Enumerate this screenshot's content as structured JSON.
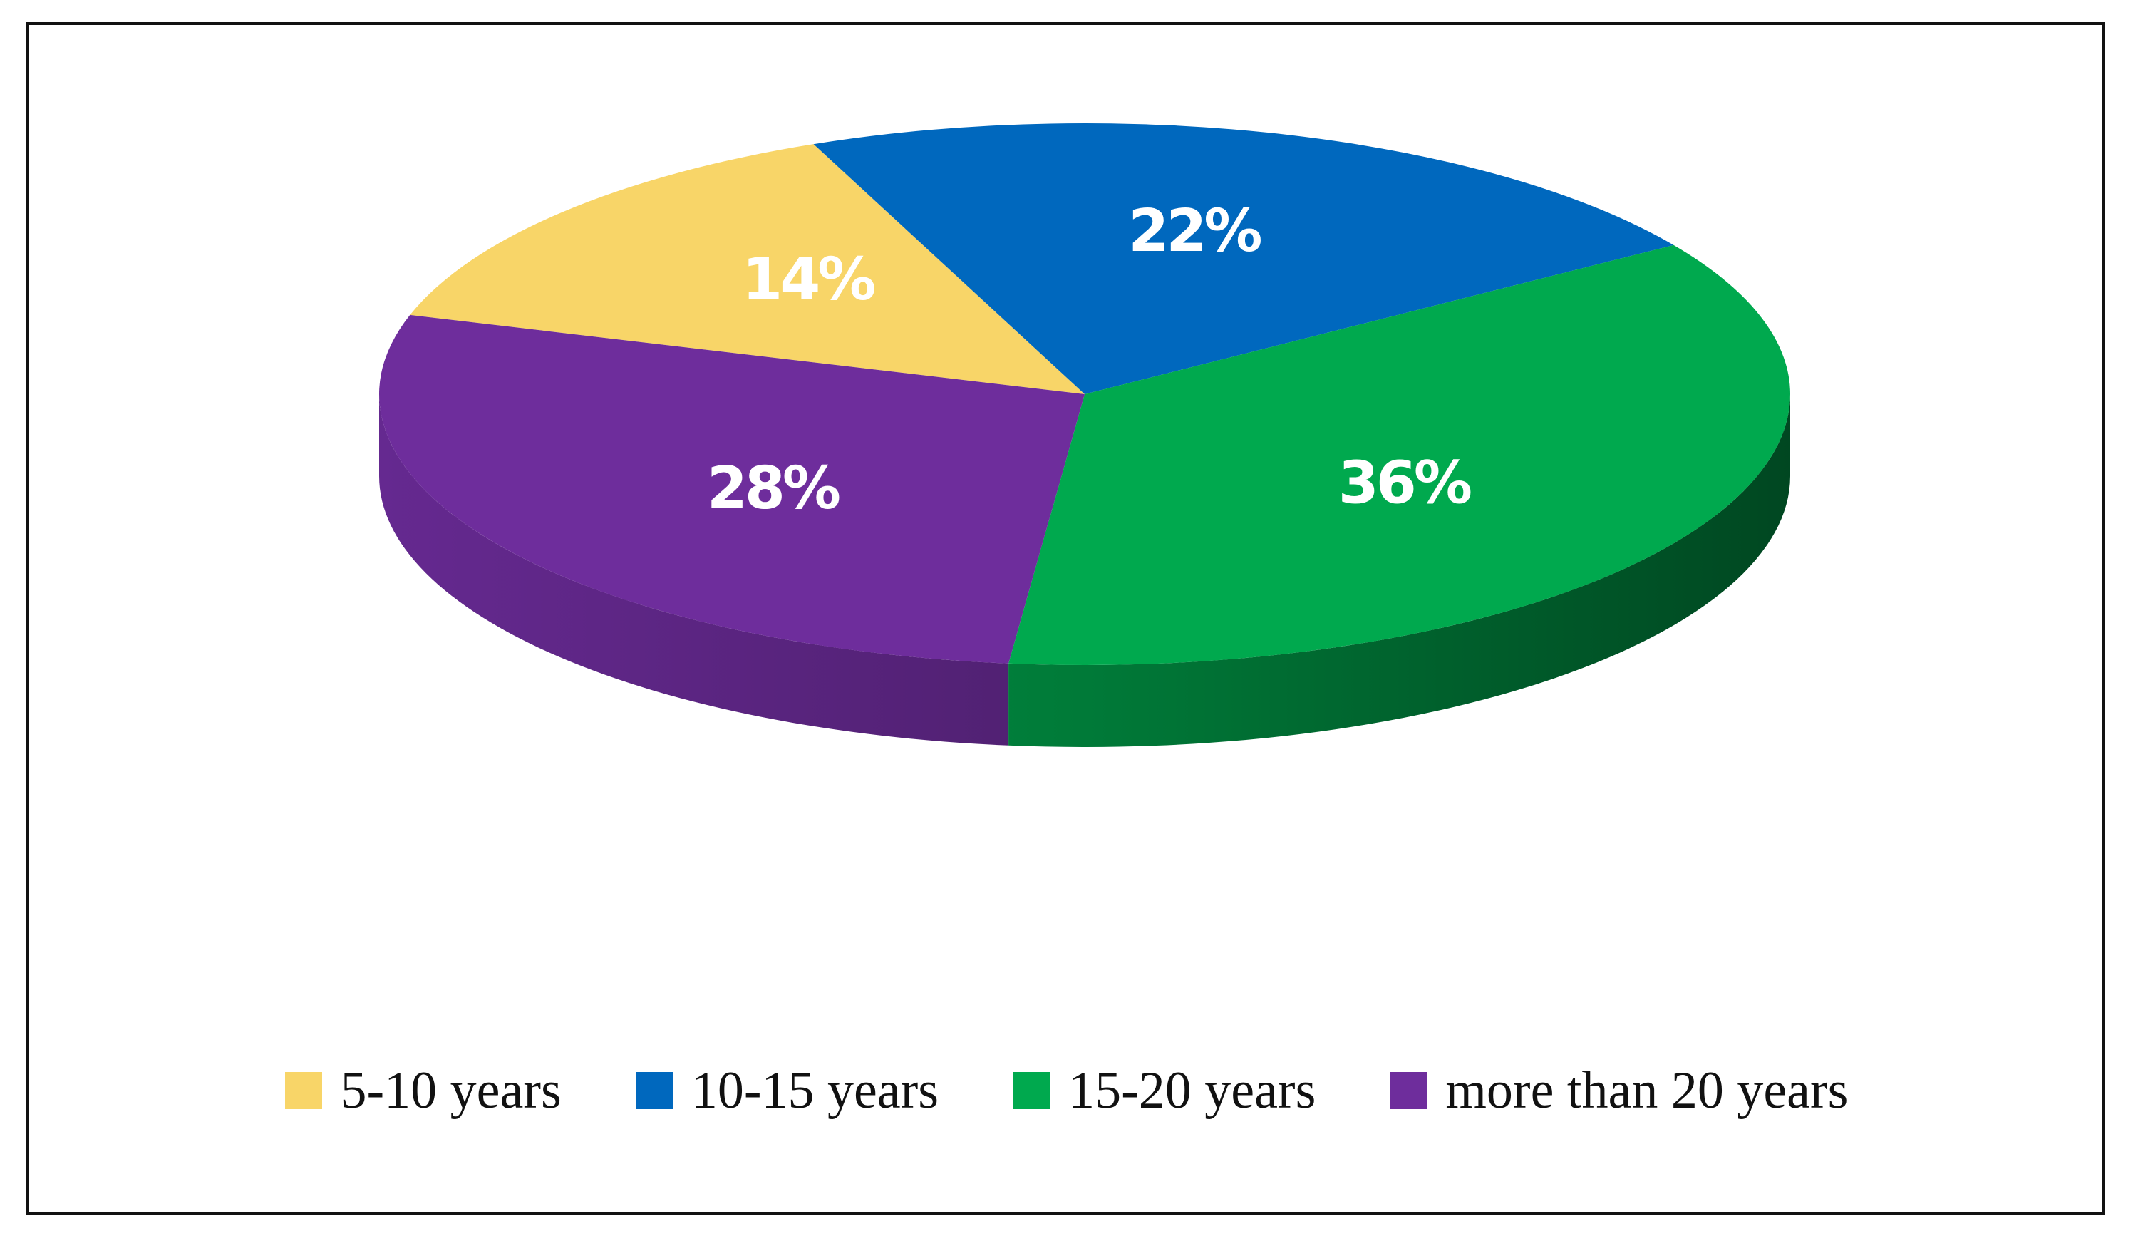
{
  "chart_data": {
    "type": "pie",
    "style": "3d",
    "legend_position": "bottom",
    "categories": [
      "5-10 years",
      "10-15 years",
      "15-20 years",
      "more than 20 years"
    ],
    "values": [
      14,
      22,
      36,
      28
    ],
    "value_labels": [
      "14%",
      "22%",
      "36%",
      "28%"
    ],
    "colors": [
      "#F8D568",
      "#0068BE",
      "#00A94E",
      "#6E2D9C"
    ]
  }
}
